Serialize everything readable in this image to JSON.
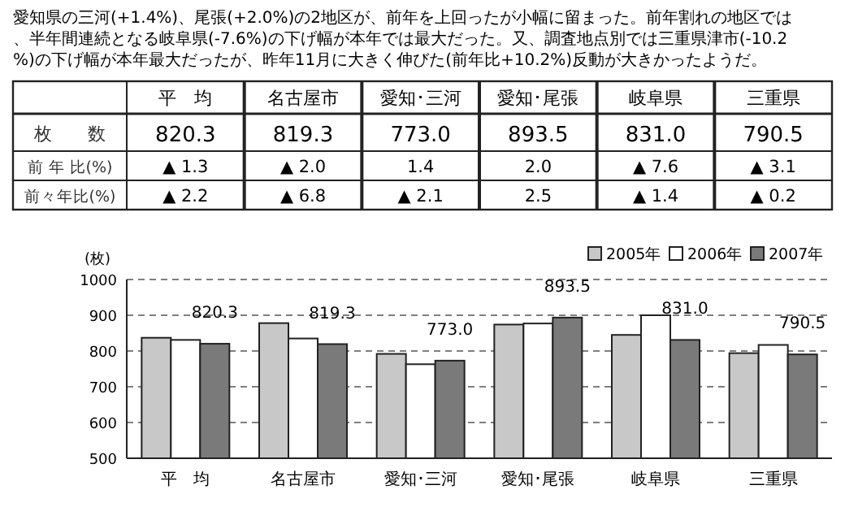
{
  "chart_data": {
    "type": "bar",
    "ylabel": "(枚)",
    "categories": [
      "平　均",
      "名古屋市",
      "愛知･三河",
      "愛知･尾張",
      "岐阜県",
      "三重県"
    ],
    "series": [
      {
        "name": "2005年",
        "color": "#c8c8c8",
        "values": [
          837,
          878,
          792,
          874,
          845,
          794
        ]
      },
      {
        "name": "2006年",
        "color": "#ffffff",
        "values": [
          831,
          835,
          763,
          877,
          900,
          817
        ]
      },
      {
        "name": "2007年",
        "color": "#7a7a7a",
        "values": [
          820.3,
          819.3,
          773.0,
          893.5,
          831.0,
          790.5
        ],
        "value_labels": [
          "820.3",
          "819.3",
          "773.0",
          "893.5",
          "831.0",
          "790.5"
        ]
      }
    ],
    "ylim": [
      500,
      1000
    ],
    "yticks": [
      500,
      600,
      700,
      800,
      900,
      1000
    ],
    "grid": "y",
    "legend": "top right",
    "annotations": [
      "愛知県の三河(+1.4%)、尾張(+2.0%)の2地区が、前年を上回ったが小幅に留まった。前年割れの地区では、半年間連続となる岐阜県(-7.6%)の下げ幅が本年では最大だった。又、調査地点別では三重県津市(-10.2%)の下げ幅が本年最大だったが、昨年11月に大きく伸びた(前年比+10.2%)反動が大きかったようだ。",
      "枚　　数",
      "前 年 比(%)",
      "▲ 1.3",
      "▲ 2.0",
      "1.4",
      "2.0",
      "▲ 7.6",
      "▲ 3.1",
      "前々年比(%)",
      "▲ 2.2",
      "▲ 6.8",
      "▲ 2.1",
      "2.5",
      "▲ 1.4",
      "▲ 0.2"
    ]
  }
}
